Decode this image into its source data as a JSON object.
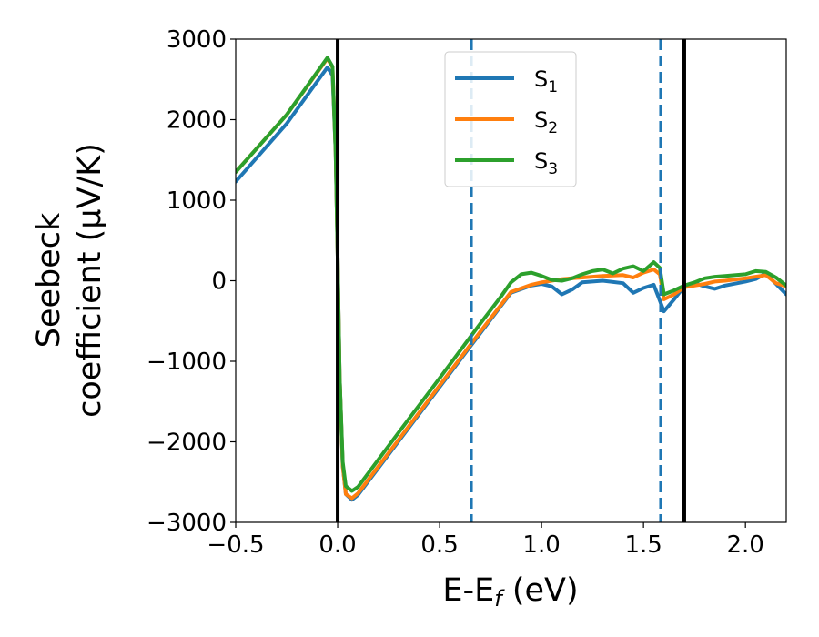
{
  "chart_data": {
    "type": "line",
    "title": "",
    "xlabel": "E-E",
    "xlabel_sub": "f",
    "xlabel_unit": " (eV)",
    "ylabel_line1": "Seebeck",
    "ylabel_line2": "coefficient  (μV/K)",
    "xlim": [
      -0.5,
      2.2
    ],
    "ylim": [
      -3000,
      3000
    ],
    "xticks": [
      -0.5,
      0.0,
      0.5,
      1.0,
      1.5,
      2.0
    ],
    "xtick_labels": [
      "−0.5",
      "0.0",
      "0.5",
      "1.0",
      "1.5",
      "2.0"
    ],
    "yticks": [
      -3000,
      -2000,
      -1000,
      0,
      1000,
      2000,
      3000
    ],
    "ytick_labels": [
      "−3000",
      "−2000",
      "−1000",
      "0",
      "1000",
      "2000",
      "3000"
    ],
    "grid": false,
    "legend_position": "top-center",
    "vlines": [
      {
        "x": 0.0,
        "style": "solid",
        "color": "#000000"
      },
      {
        "x": 1.7,
        "style": "solid",
        "color": "#000000"
      },
      {
        "x": 0.655,
        "style": "dashed",
        "color": "#1f77b4"
      },
      {
        "x": 1.585,
        "style": "dashed",
        "color": "#1f77b4"
      }
    ],
    "series": [
      {
        "name": "S",
        "sub": "1",
        "color": "#1f77b4",
        "points": [
          [
            -0.5,
            1230
          ],
          [
            -0.25,
            1950
          ],
          [
            -0.05,
            2650
          ],
          [
            -0.025,
            2550
          ],
          [
            -0.01,
            1600
          ],
          [
            0.0,
            300
          ],
          [
            0.01,
            -1200
          ],
          [
            0.025,
            -2300
          ],
          [
            0.04,
            -2650
          ],
          [
            0.07,
            -2720
          ],
          [
            0.1,
            -2660
          ],
          [
            0.3,
            -1990
          ],
          [
            0.5,
            -1320
          ],
          [
            0.7,
            -650
          ],
          [
            0.85,
            -150
          ],
          [
            0.95,
            -60
          ],
          [
            1.0,
            -40
          ],
          [
            1.05,
            -70
          ],
          [
            1.1,
            -170
          ],
          [
            1.15,
            -110
          ],
          [
            1.2,
            -20
          ],
          [
            1.3,
            0
          ],
          [
            1.4,
            -30
          ],
          [
            1.45,
            -150
          ],
          [
            1.5,
            -90
          ],
          [
            1.55,
            -50
          ],
          [
            1.6,
            -380
          ],
          [
            1.65,
            -230
          ],
          [
            1.7,
            -70
          ],
          [
            1.75,
            -30
          ],
          [
            1.8,
            -70
          ],
          [
            1.85,
            -100
          ],
          [
            1.9,
            -60
          ],
          [
            2.0,
            -10
          ],
          [
            2.05,
            20
          ],
          [
            2.1,
            90
          ],
          [
            2.15,
            -40
          ],
          [
            2.2,
            -170
          ]
        ]
      },
      {
        "name": "S",
        "sub": "2",
        "color": "#ff7f0e",
        "points": [
          [
            -0.5,
            1350
          ],
          [
            -0.25,
            2060
          ],
          [
            -0.05,
            2760
          ],
          [
            -0.025,
            2650
          ],
          [
            -0.01,
            1600
          ],
          [
            0.0,
            300
          ],
          [
            0.01,
            -1200
          ],
          [
            0.025,
            -2300
          ],
          [
            0.04,
            -2650
          ],
          [
            0.07,
            -2700
          ],
          [
            0.1,
            -2640
          ],
          [
            0.3,
            -1970
          ],
          [
            0.5,
            -1300
          ],
          [
            0.7,
            -630
          ],
          [
            0.85,
            -140
          ],
          [
            0.95,
            -50
          ],
          [
            1.0,
            -20
          ],
          [
            1.05,
            0
          ],
          [
            1.1,
            20
          ],
          [
            1.15,
            30
          ],
          [
            1.2,
            40
          ],
          [
            1.3,
            60
          ],
          [
            1.4,
            70
          ],
          [
            1.45,
            40
          ],
          [
            1.5,
            100
          ],
          [
            1.55,
            140
          ],
          [
            1.58,
            80
          ],
          [
            1.6,
            -230
          ],
          [
            1.65,
            -170
          ],
          [
            1.7,
            -80
          ],
          [
            1.8,
            -40
          ],
          [
            1.85,
            -10
          ],
          [
            1.9,
            0
          ],
          [
            2.0,
            30
          ],
          [
            2.1,
            70
          ],
          [
            2.15,
            -30
          ],
          [
            2.2,
            -70
          ]
        ]
      },
      {
        "name": "S",
        "sub": "3",
        "color": "#2ca02c",
        "points": [
          [
            -0.5,
            1350
          ],
          [
            -0.25,
            2060
          ],
          [
            -0.05,
            2770
          ],
          [
            -0.025,
            2660
          ],
          [
            -0.01,
            1600
          ],
          [
            0.0,
            300
          ],
          [
            0.01,
            -1200
          ],
          [
            0.025,
            -2250
          ],
          [
            0.04,
            -2550
          ],
          [
            0.07,
            -2610
          ],
          [
            0.1,
            -2560
          ],
          [
            0.3,
            -1880
          ],
          [
            0.5,
            -1210
          ],
          [
            0.7,
            -530
          ],
          [
            0.8,
            -200
          ],
          [
            0.85,
            -20
          ],
          [
            0.9,
            80
          ],
          [
            0.95,
            100
          ],
          [
            1.0,
            60
          ],
          [
            1.05,
            10
          ],
          [
            1.1,
            0
          ],
          [
            1.15,
            30
          ],
          [
            1.2,
            80
          ],
          [
            1.25,
            120
          ],
          [
            1.3,
            140
          ],
          [
            1.35,
            90
          ],
          [
            1.4,
            150
          ],
          [
            1.45,
            180
          ],
          [
            1.5,
            120
          ],
          [
            1.55,
            230
          ],
          [
            1.58,
            160
          ],
          [
            1.6,
            -170
          ],
          [
            1.65,
            -120
          ],
          [
            1.7,
            -60
          ],
          [
            1.75,
            -20
          ],
          [
            1.8,
            30
          ],
          [
            1.85,
            50
          ],
          [
            1.9,
            60
          ],
          [
            2.0,
            80
          ],
          [
            2.05,
            120
          ],
          [
            2.1,
            110
          ],
          [
            2.15,
            40
          ],
          [
            2.2,
            -60
          ]
        ]
      }
    ]
  }
}
